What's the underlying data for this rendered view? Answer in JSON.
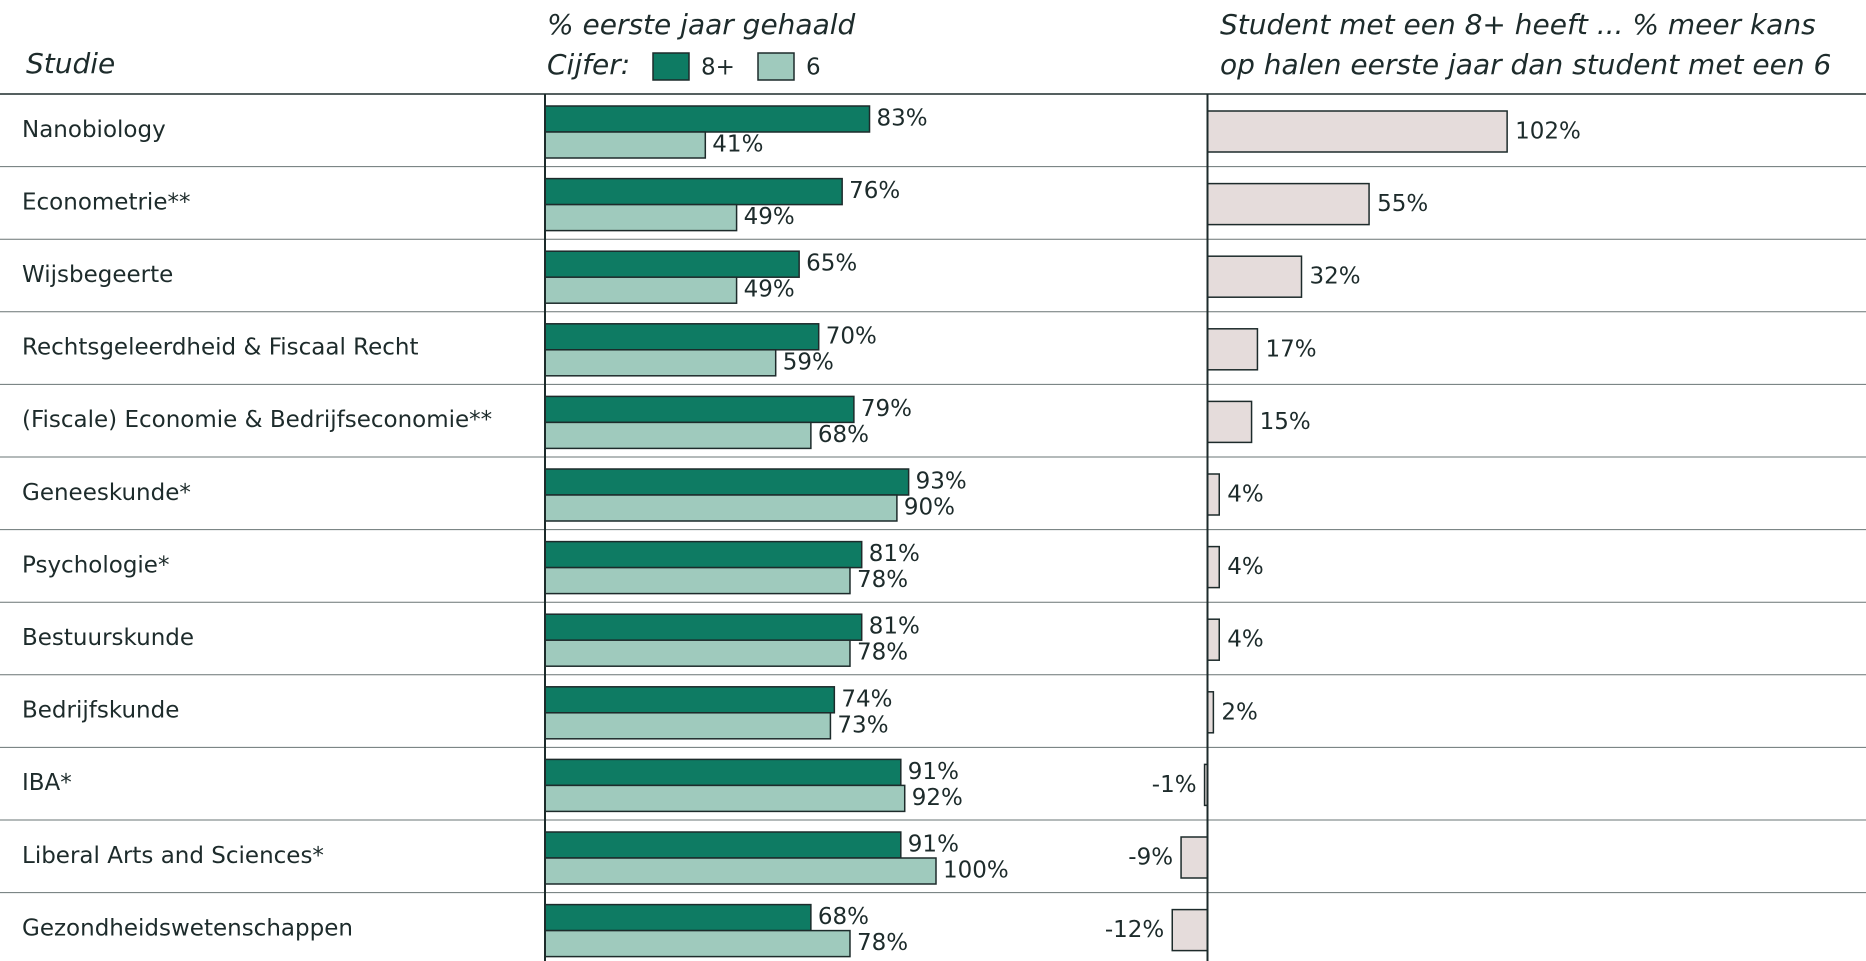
{
  "chart_data": [
    {
      "type": "grouped-bar",
      "category_label": "Studie",
      "title": "% eerste jaar gehaald",
      "legend_title": "Cijfer:",
      "categories": [
        "Nanobiology",
        "Econometrie**",
        "Wijsbegeerte",
        "Rechtsgeleerdheid & Fiscaal Recht",
        "(Fiscale) Economie & Bedrijfseconomie**",
        "Geneeskunde*",
        "Psychologie*",
        "Bestuurskunde",
        "Bedrijfskunde",
        "IBA*",
        "Liberal Arts and Sciences*",
        "Gezondheidswetenschappen"
      ],
      "xlim": [
        0,
        100
      ],
      "series": [
        {
          "name": "8+",
          "color": "#0e7b63",
          "values": [
            83,
            76,
            65,
            70,
            79,
            93,
            81,
            81,
            74,
            91,
            91,
            68
          ],
          "value_labels": [
            "83%",
            "76%",
            "65%",
            "70%",
            "79%",
            "93%",
            "81%",
            "81%",
            "74%",
            "91%",
            "91%",
            "68%"
          ]
        },
        {
          "name": "6",
          "color": "#9fcabd",
          "values": [
            41,
            49,
            49,
            59,
            68,
            90,
            78,
            78,
            73,
            92,
            100,
            78
          ],
          "value_labels": [
            "41%",
            "49%",
            "49%",
            "59%",
            "68%",
            "90%",
            "78%",
            "78%",
            "73%",
            "92%",
            "100%",
            "78%"
          ]
        }
      ]
    },
    {
      "type": "bar",
      "title": [
        "Student met een 8+ heeft ... % meer kans",
        "op halen eerste jaar dan student met een 6"
      ],
      "xlim": [
        -40,
        200
      ],
      "color": "#e5dcdb",
      "values": [
        102,
        55,
        32,
        17,
        15,
        4,
        4,
        4,
        2,
        -1,
        -9,
        -12
      ],
      "value_labels": [
        "102%",
        "55%",
        "32%",
        "17%",
        "15%",
        "4%",
        "4%",
        "4%",
        "2%",
        "-1%",
        "-9%",
        "-12%"
      ]
    }
  ]
}
